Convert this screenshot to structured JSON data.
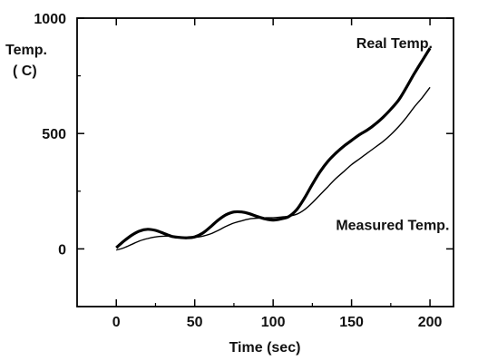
{
  "chart_data": {
    "type": "line",
    "title": "",
    "xlabel": "Time (sec)",
    "ylabel": [
      "Temp.",
      "( C)"
    ],
    "xlim": [
      -25,
      215
    ],
    "ylim": [
      -250,
      1000
    ],
    "xticks": [
      0,
      50,
      100,
      150,
      200
    ],
    "yticks": [
      0,
      500,
      1000
    ],
    "grid": false,
    "legend": "none",
    "series": [
      {
        "name": "Real Temp.",
        "color": "#000000",
        "x": [
          0,
          5,
          10,
          15,
          20,
          25,
          30,
          35,
          40,
          45,
          50,
          55,
          60,
          65,
          70,
          75,
          80,
          85,
          90,
          95,
          100,
          105,
          110,
          115,
          120,
          125,
          130,
          135,
          140,
          145,
          150,
          155,
          160,
          165,
          170,
          175,
          180,
          185,
          190,
          195,
          200
        ],
        "y": [
          5,
          35,
          60,
          78,
          85,
          80,
          68,
          55,
          50,
          48,
          52,
          68,
          95,
          125,
          148,
          160,
          160,
          152,
          140,
          130,
          125,
          130,
          140,
          170,
          220,
          280,
          335,
          380,
          415,
          445,
          470,
          495,
          515,
          540,
          570,
          605,
          645,
          700,
          760,
          815,
          870
        ]
      },
      {
        "name": "Measured Temp.",
        "color": "#000000",
        "x": [
          0,
          5,
          10,
          15,
          20,
          25,
          30,
          35,
          40,
          45,
          50,
          55,
          60,
          65,
          70,
          75,
          80,
          85,
          90,
          95,
          100,
          105,
          110,
          115,
          120,
          125,
          130,
          135,
          140,
          145,
          150,
          155,
          160,
          165,
          170,
          175,
          180,
          185,
          190,
          195,
          200
        ],
        "y": [
          -5,
          5,
          20,
          35,
          45,
          52,
          55,
          55,
          52,
          50,
          50,
          55,
          65,
          80,
          98,
          112,
          122,
          130,
          133,
          135,
          135,
          138,
          142,
          150,
          170,
          200,
          235,
          270,
          305,
          335,
          365,
          390,
          415,
          440,
          465,
          495,
          530,
          570,
          615,
          655,
          700
        ]
      }
    ],
    "annotations": [
      {
        "text": "Real Temp.",
        "x": 153,
        "y": 870
      },
      {
        "text": "Measured Temp.",
        "x": 140,
        "y": 82
      }
    ]
  }
}
